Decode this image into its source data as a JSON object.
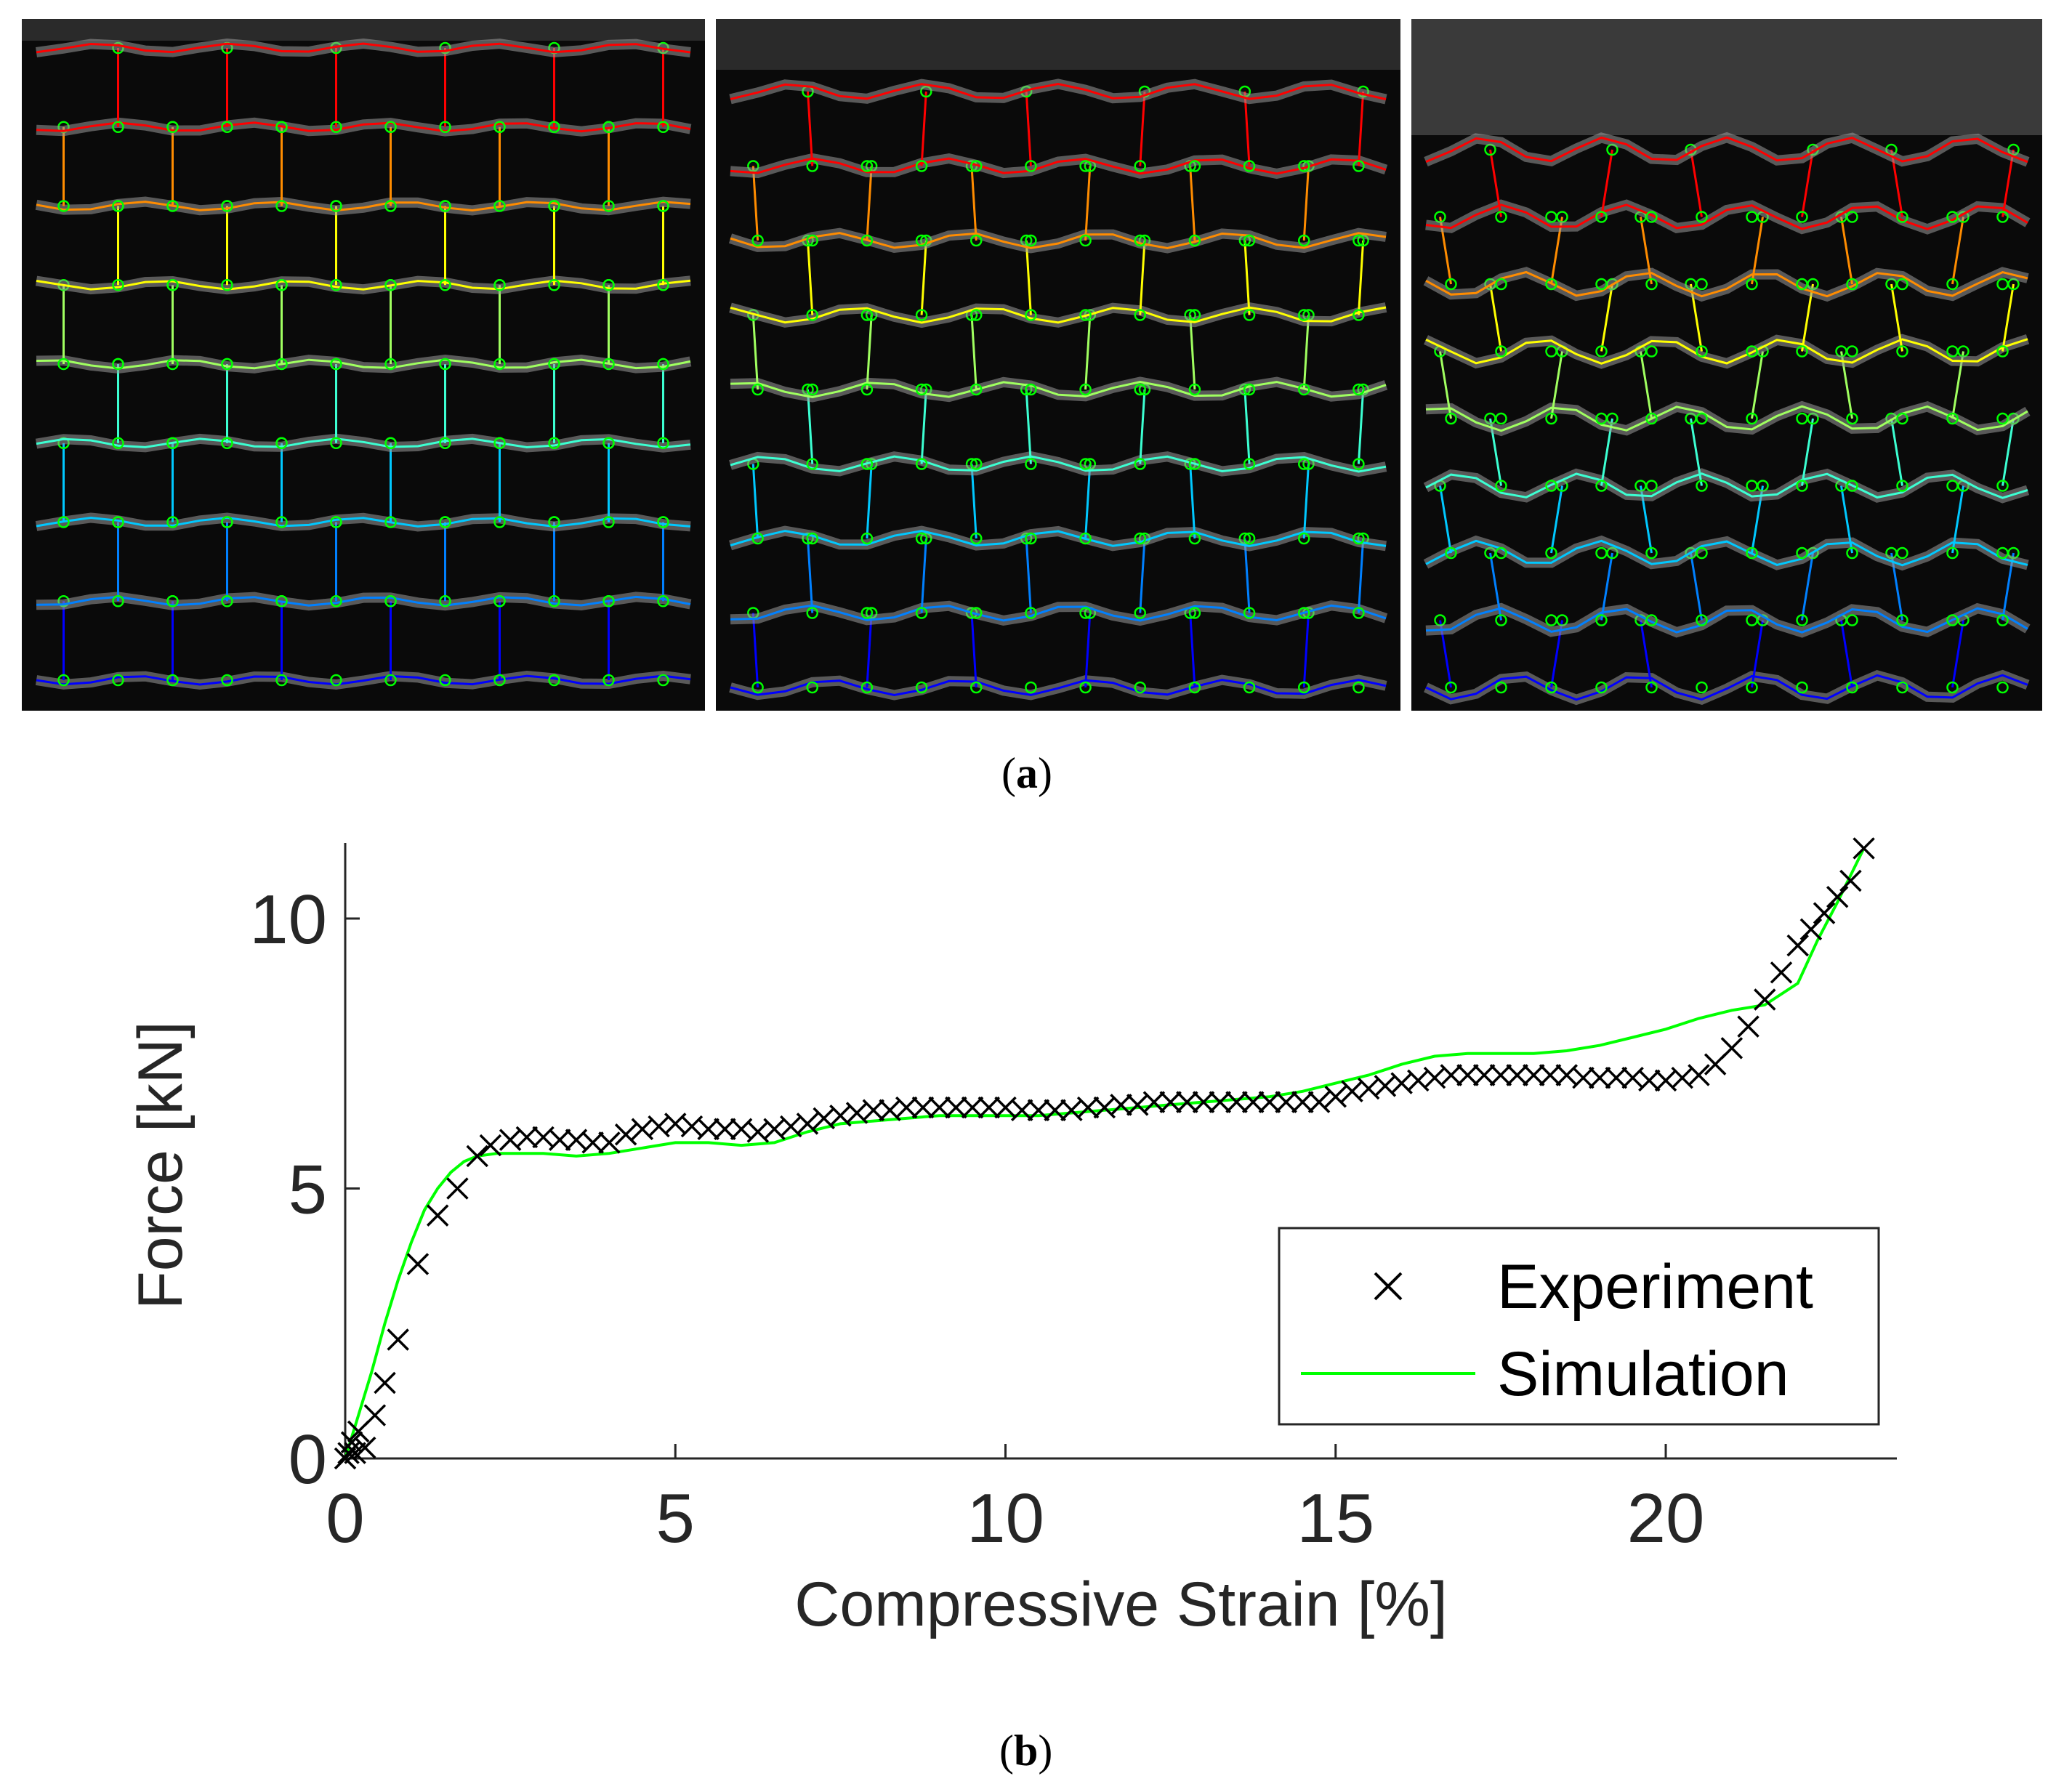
{
  "figure": {
    "caption_a": "a",
    "caption_b": "b",
    "panel_a": {
      "description_frames": 3,
      "colors": {
        "row_colors": [
          "#0000ff",
          "#0080ff",
          "#00c8ff",
          "#3cffd2",
          "#a0ff60",
          "#ffff00",
          "#ff8c00",
          "#ff0000"
        ],
        "marker_color": "#00ff00",
        "background": "#0a0a0a",
        "structure": "#bdbdbd"
      }
    }
  },
  "chart_data": {
    "type": "line",
    "title": "",
    "xlabel": "Compressive Strain [%]",
    "ylabel": "Force [kN]",
    "xlim": [
      0,
      23.5
    ],
    "ylim": [
      0,
      11.4
    ],
    "xticks": [
      0,
      5,
      10,
      15,
      20
    ],
    "yticks": [
      0,
      5,
      10
    ],
    "grid": false,
    "legend_position": "lower-right",
    "series": [
      {
        "name": "Experiment",
        "marker": "x",
        "color": "#000000",
        "x": [
          0.0,
          0.05,
          0.1,
          0.15,
          0.2,
          0.3,
          0.45,
          0.6,
          0.8,
          1.1,
          1.4,
          1.7,
          2.0,
          2.2,
          2.5,
          2.75,
          3.0,
          3.25,
          3.5,
          3.75,
          4.0,
          4.25,
          4.5,
          4.75,
          5.0,
          5.25,
          5.5,
          5.75,
          6.0,
          6.25,
          6.5,
          6.75,
          7.0,
          7.25,
          7.5,
          7.75,
          8.0,
          8.25,
          8.5,
          8.75,
          9.0,
          9.25,
          9.5,
          9.75,
          10.0,
          10.25,
          10.5,
          10.75,
          11.0,
          11.25,
          11.5,
          11.75,
          12.0,
          12.25,
          12.5,
          12.75,
          13.0,
          13.25,
          13.5,
          13.75,
          14.0,
          14.25,
          14.5,
          14.75,
          15.0,
          15.25,
          15.5,
          15.75,
          16.0,
          16.25,
          16.5,
          16.75,
          17.0,
          17.25,
          17.5,
          17.75,
          18.0,
          18.25,
          18.5,
          18.75,
          19.0,
          19.25,
          19.5,
          19.75,
          20.0,
          20.25,
          20.5,
          20.75,
          21.0,
          21.25,
          21.5,
          21.75,
          22.0,
          22.2,
          22.4,
          22.6,
          22.8,
          23.0
        ],
        "y": [
          0.0,
          0.1,
          0.3,
          0.1,
          0.5,
          0.2,
          0.8,
          1.4,
          2.2,
          3.6,
          4.5,
          5.0,
          5.6,
          5.8,
          5.9,
          5.95,
          5.95,
          5.9,
          5.9,
          5.85,
          5.85,
          6.0,
          6.1,
          6.15,
          6.2,
          6.15,
          6.1,
          6.1,
          6.1,
          6.05,
          6.1,
          6.15,
          6.2,
          6.3,
          6.35,
          6.4,
          6.45,
          6.45,
          6.5,
          6.5,
          6.5,
          6.5,
          6.5,
          6.5,
          6.5,
          6.45,
          6.45,
          6.45,
          6.45,
          6.5,
          6.5,
          6.55,
          6.55,
          6.6,
          6.6,
          6.6,
          6.6,
          6.6,
          6.6,
          6.6,
          6.6,
          6.6,
          6.6,
          6.6,
          6.7,
          6.8,
          6.85,
          6.9,
          6.95,
          7.0,
          7.05,
          7.1,
          7.1,
          7.1,
          7.1,
          7.1,
          7.1,
          7.1,
          7.1,
          7.05,
          7.05,
          7.05,
          7.05,
          7.0,
          7.0,
          7.05,
          7.1,
          7.3,
          7.6,
          8.0,
          8.5,
          9.0,
          9.5,
          9.8,
          10.1,
          10.4,
          10.7,
          11.3
        ]
      },
      {
        "name": "Simulation",
        "marker": "line",
        "color": "#00ff00",
        "x": [
          0.0,
          0.2,
          0.4,
          0.6,
          0.8,
          1.0,
          1.2,
          1.4,
          1.6,
          1.8,
          2.0,
          2.3,
          2.6,
          3.0,
          3.5,
          4.0,
          4.5,
          5.0,
          5.5,
          6.0,
          6.5,
          7.0,
          7.5,
          8.0,
          8.5,
          9.0,
          9.5,
          10.0,
          10.5,
          11.0,
          11.5,
          12.0,
          12.5,
          13.0,
          13.5,
          14.0,
          14.5,
          15.0,
          15.5,
          16.0,
          16.5,
          17.0,
          17.5,
          18.0,
          18.5,
          19.0,
          19.5,
          20.0,
          20.5,
          21.0,
          21.5,
          22.0,
          22.3,
          22.6,
          23.0
        ],
        "y": [
          0.0,
          0.8,
          1.6,
          2.5,
          3.3,
          4.0,
          4.6,
          5.0,
          5.3,
          5.5,
          5.6,
          5.65,
          5.65,
          5.65,
          5.6,
          5.65,
          5.75,
          5.85,
          5.85,
          5.8,
          5.85,
          6.05,
          6.2,
          6.25,
          6.3,
          6.35,
          6.35,
          6.35,
          6.35,
          6.4,
          6.45,
          6.5,
          6.55,
          6.6,
          6.65,
          6.7,
          6.8,
          6.95,
          7.1,
          7.3,
          7.45,
          7.5,
          7.5,
          7.5,
          7.55,
          7.65,
          7.8,
          7.95,
          8.15,
          8.3,
          8.4,
          8.8,
          9.6,
          10.3,
          11.3
        ]
      }
    ]
  }
}
